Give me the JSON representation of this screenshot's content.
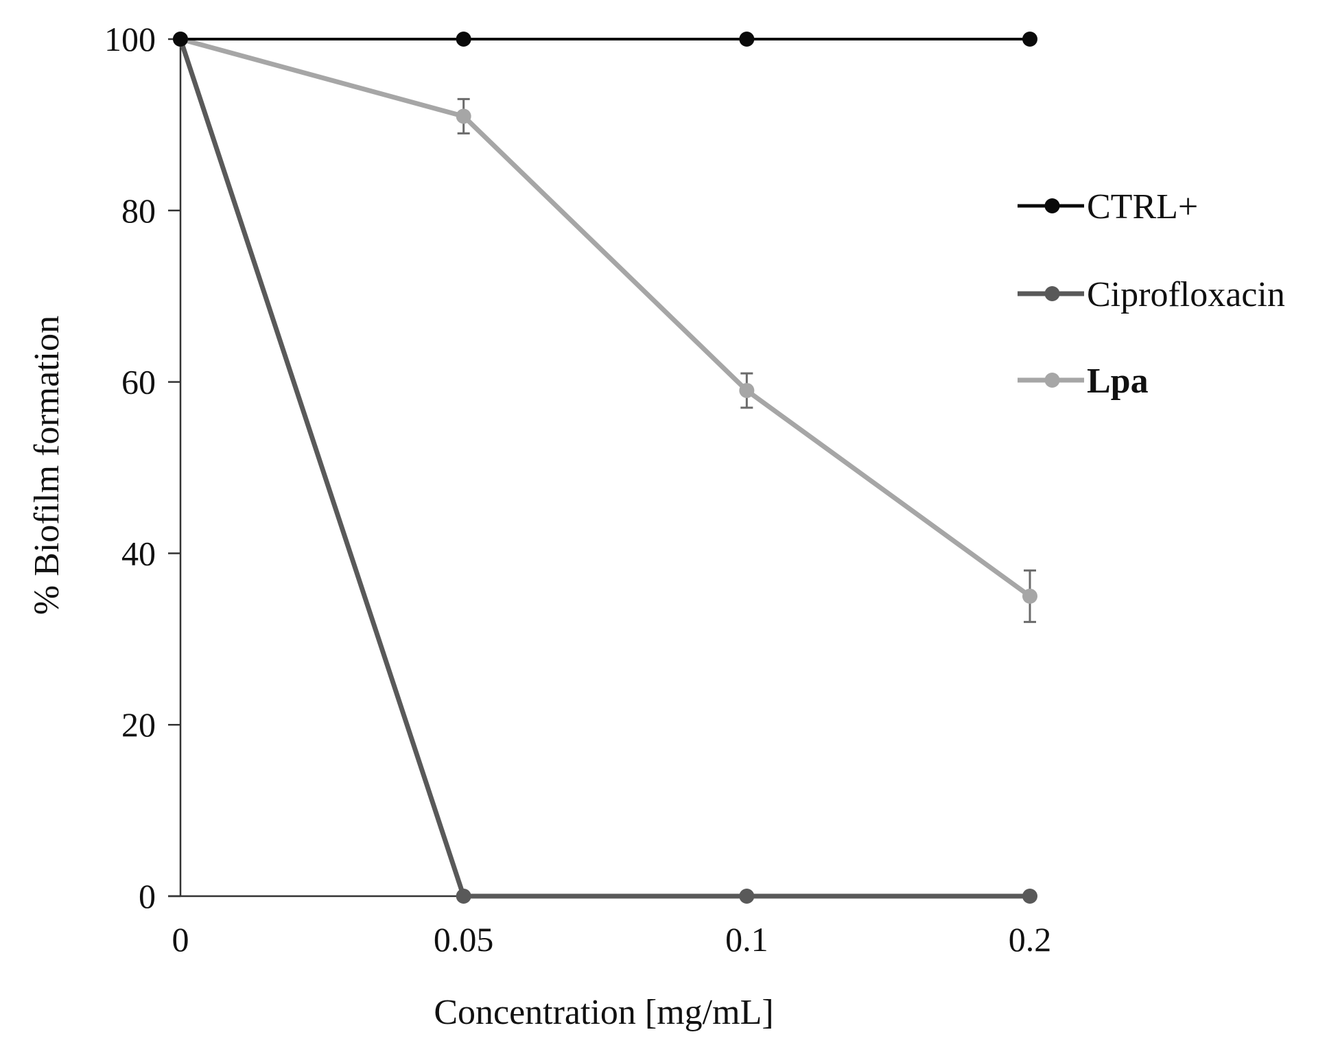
{
  "chart_data": {
    "type": "line",
    "title": "",
    "xlabel": "Concentration [mg/mL]",
    "ylabel": "% Biofilm formation",
    "x_categories": [
      "0",
      "0.05",
      "0.1",
      "0.2"
    ],
    "ylim": [
      0,
      100
    ],
    "yticks": [
      0,
      20,
      40,
      60,
      80,
      100
    ],
    "ytick_labels": [
      "0",
      "20",
      "40",
      "60",
      "80",
      "100"
    ],
    "grid": false,
    "legend_position": "right",
    "series": [
      {
        "name": "CTRL+",
        "color": "#0a0a0a",
        "bold": false,
        "values": [
          100,
          100,
          100,
          100
        ],
        "errors": [
          0,
          0,
          0,
          0
        ]
      },
      {
        "name": "Ciprofloxacin",
        "color": "#595959",
        "bold": false,
        "values": [
          100,
          0,
          0,
          0
        ],
        "errors": [
          0,
          0,
          0,
          0
        ]
      },
      {
        "name": "Lpa",
        "color": "#a6a6a6",
        "bold": true,
        "values": [
          100,
          91,
          59,
          35
        ],
        "errors": [
          0,
          2,
          2,
          3
        ]
      }
    ],
    "error_bar_color": "#6b6b6b"
  }
}
